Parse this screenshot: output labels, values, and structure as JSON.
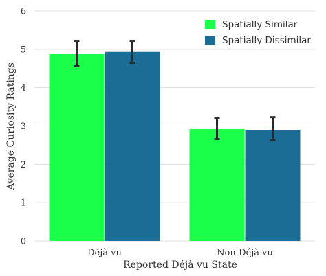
{
  "chart_data": {
    "type": "bar",
    "title": "",
    "xlabel": "Reported Déjà vu State",
    "ylabel": "Average Curiosity Ratings",
    "categories": [
      "Déjà vu",
      "Non-Déjà vu"
    ],
    "ylim": [
      0,
      6
    ],
    "yticks": [
      "0",
      "1",
      "2",
      "3",
      "4",
      "5",
      "6"
    ],
    "grid": "horizontal",
    "legend_position": "top-right",
    "series": [
      {
        "name": "Spatially Similar",
        "color": "#1aff4a",
        "values": [
          4.89,
          2.92
        ],
        "error_low": [
          4.56,
          2.66
        ],
        "error_high": [
          5.22,
          3.2
        ]
      },
      {
        "name": "Spatially Dissimilar",
        "color": "#1b6d96",
        "values": [
          4.93,
          2.9
        ],
        "error_low": [
          4.65,
          2.63
        ],
        "error_high": [
          5.22,
          3.23
        ]
      }
    ]
  }
}
